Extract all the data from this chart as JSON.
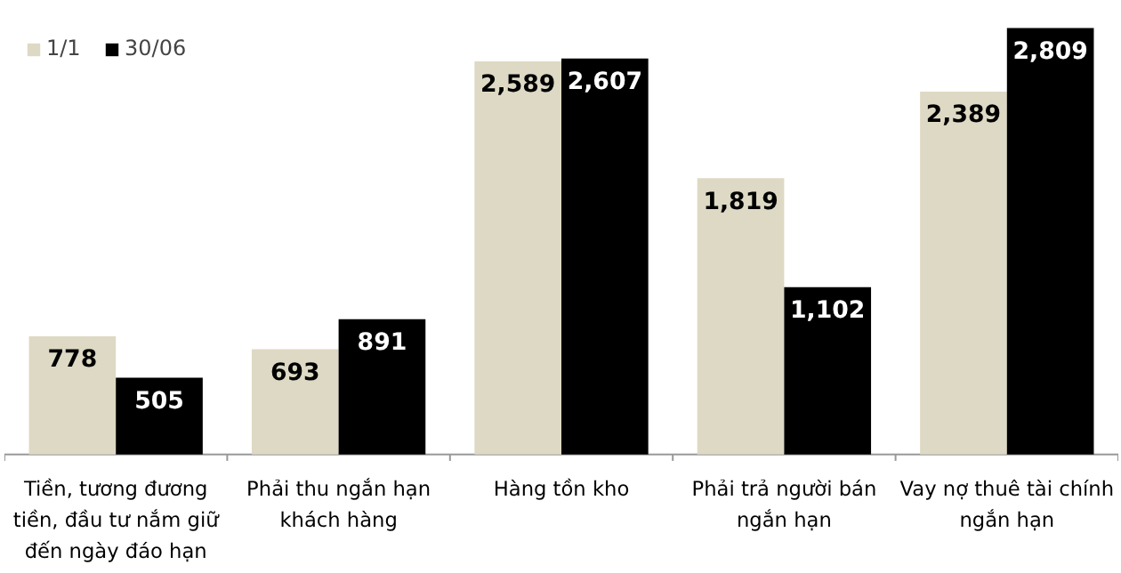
{
  "chart_data": {
    "type": "bar",
    "categories": [
      "Tiền, tương đương tiền, đầu tư nắm giữ đến ngày đáo hạn",
      "Phải thu ngắn hạn khách hàng",
      "Hàng tồn kho",
      "Phải trả người bán ngắn hạn",
      "Vay nợ thuê tài chính ngắn hạn"
    ],
    "series": [
      {
        "name": "1/1",
        "color": "#ddd9c4",
        "values": [
          778,
          693,
          2589,
          1819,
          2389
        ],
        "value_labels": [
          "778",
          "693",
          "2,589",
          "1,819",
          "2,389"
        ]
      },
      {
        "name": "30/06",
        "color": "#000000",
        "values": [
          505,
          891,
          2607,
          1102,
          2809
        ],
        "value_labels": [
          "505",
          "891",
          "2,607",
          "1,102",
          "2,809"
        ]
      }
    ],
    "legend": "top left",
    "grid": false
  }
}
